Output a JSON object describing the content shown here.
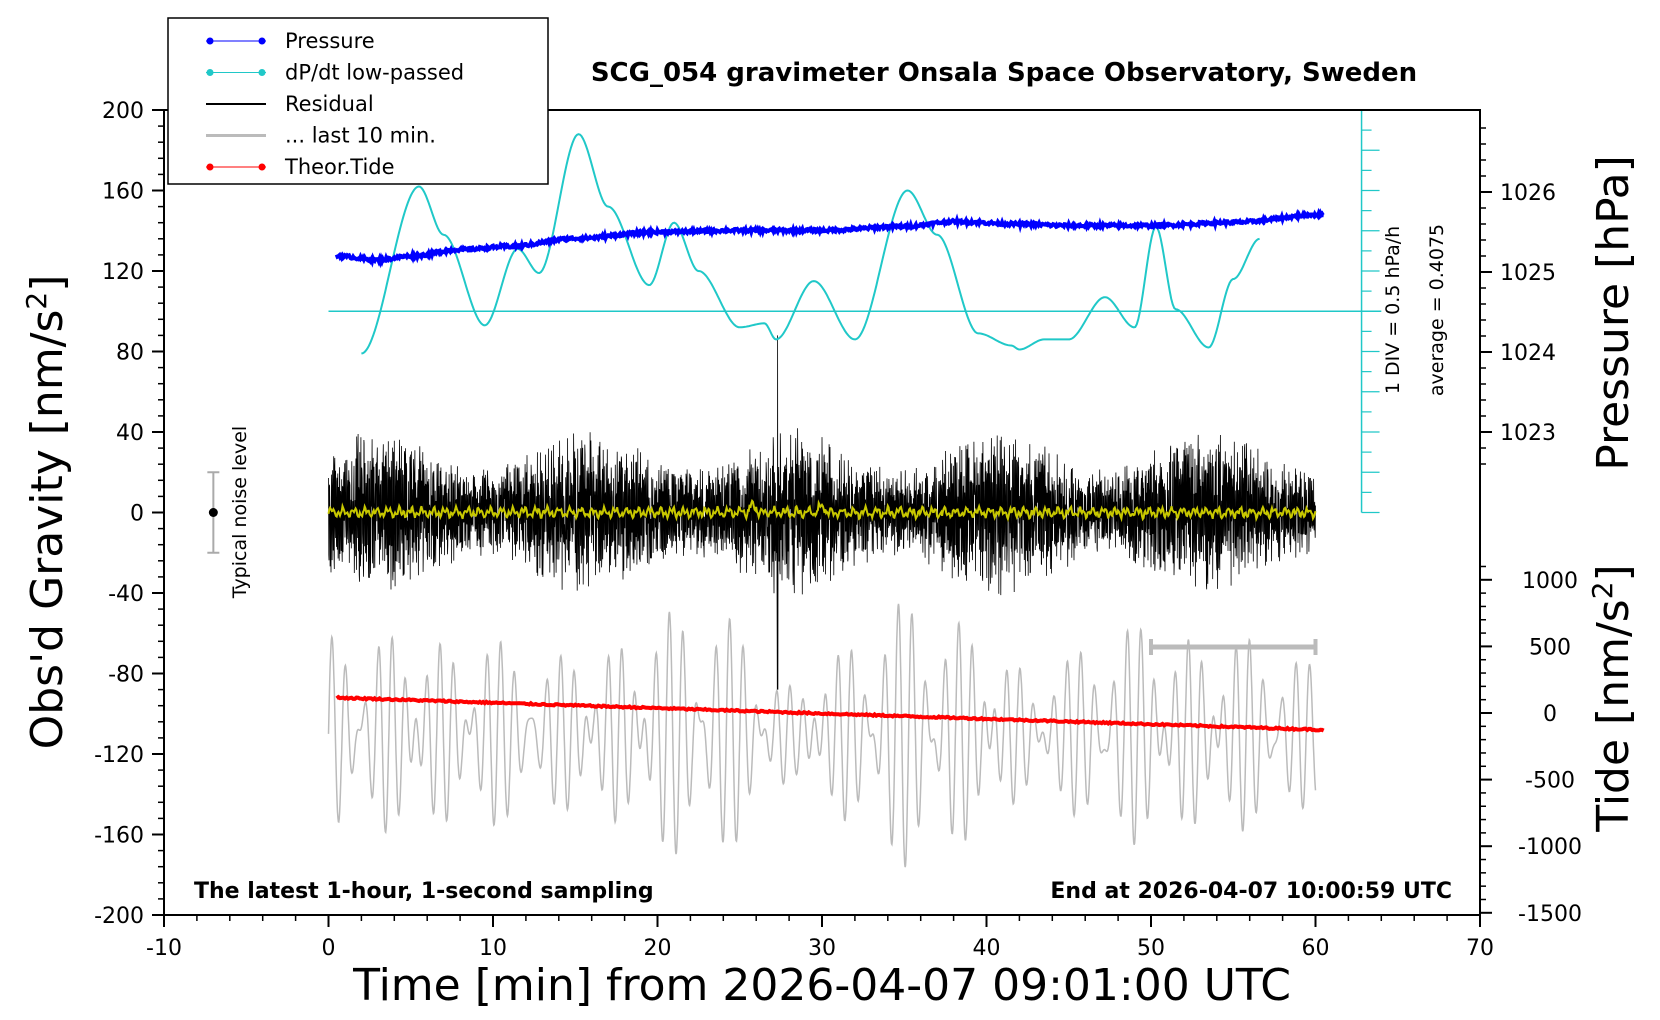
{
  "chart_data": {
    "type": "line",
    "title": "SCG_054 gravimeter Onsala Space Observatory, Sweden",
    "xlabel": "Time [min] from 2026-04-07 09:01:00 UTC",
    "ylabel_left_main": "Obs'd Gravity [nm/s",
    "ylabel_left_sup": "2",
    "ylabel_left_end": "]",
    "ylabel_right_pressure": "Pressure [hPa]",
    "ylabel_right_tide_main": "Tide [nm/s",
    "ylabel_right_tide_sup": "2",
    "ylabel_right_tide_end": "]",
    "note_left": "The latest 1-hour, 1-second sampling",
    "note_right": "End at 2026-04-07 10:00:59 UTC",
    "noise_label": "Typical noise level",
    "dpdt_scale_label": "1 DIV = 0.5 hPa/h",
    "dpdt_average_label": "average = 0.4075",
    "xlim": [
      -10,
      70
    ],
    "xticks": [
      "-10",
      "0",
      "10",
      "20",
      "30",
      "40",
      "50",
      "60",
      "70"
    ],
    "ylim_left": [
      -200,
      200
    ],
    "yticks_left": [
      "-200",
      "-160",
      "-120",
      "-80",
      "-40",
      "0",
      "40",
      "80",
      "120",
      "160",
      "200"
    ],
    "pressure_ticks": [
      "1023",
      "1024",
      "1025",
      "1026"
    ],
    "tide_ticks": [
      "-1500",
      "-1000",
      "-500",
      "0",
      "500",
      "1000"
    ],
    "legend": {
      "placement": "top-left",
      "entries": [
        "Pressure",
        "dP/dt low-passed",
        "Residual",
        "... last 10 min.",
        "Theor.Tide"
      ]
    },
    "colors": {
      "pressure": "#0000ff",
      "dpdt": "#20c8c8",
      "residual": "#000000",
      "last10": "#bbbbbb",
      "tide": "#ff0000",
      "lowpass_residual": "#c8c800"
    },
    "series": [
      {
        "name": "Pressure",
        "unit": "hPa",
        "x": [
          0.5,
          3,
          5,
          8,
          11,
          15,
          20,
          25,
          30,
          35,
          38,
          42,
          45,
          50,
          55,
          60.5
        ],
        "values": [
          1025.2,
          1025.15,
          1025.2,
          1025.28,
          1025.32,
          1025.42,
          1025.5,
          1025.52,
          1025.52,
          1025.57,
          1025.63,
          1025.6,
          1025.58,
          1025.58,
          1025.62,
          1025.72
        ]
      },
      {
        "name": "dP/dt low-passed",
        "x": [
          2,
          5.5,
          7,
          9.5,
          11.5,
          12.8,
          15.2,
          17,
          19.5,
          21,
          22.5,
          25,
          26.5,
          27.2,
          29.5,
          32,
          35.2,
          37,
          39.5,
          41.5,
          42,
          43.5,
          45,
          47.2,
          49,
          50.3,
          51.5,
          53.5,
          55,
          56.6
        ],
        "values": [
          79,
          162,
          138,
          93,
          131,
          119,
          188,
          152,
          113,
          144,
          120,
          92,
          94,
          86,
          115,
          86,
          160,
          138,
          89,
          83,
          81,
          86,
          86,
          107,
          92,
          142,
          101,
          82,
          116,
          136
        ]
      },
      {
        "name": "Residual",
        "x": [
          0,
          60
        ],
        "amplitude": 40,
        "spike": {
          "x": 27.3,
          "min": -88,
          "max": 88
        }
      },
      {
        "name": "... last 10 min.",
        "x": [
          0,
          60
        ],
        "center": -110,
        "amplitude": 60,
        "x_bracket": [
          50,
          60
        ]
      },
      {
        "name": "Theor.Tide",
        "x": [
          0.5,
          60.5
        ],
        "values": [
          -92,
          -108
        ]
      }
    ],
    "dpdt_zero_line": 100,
    "noise_bar": {
      "x": -7,
      "value": 0,
      "min": -20,
      "max": 20
    }
  }
}
